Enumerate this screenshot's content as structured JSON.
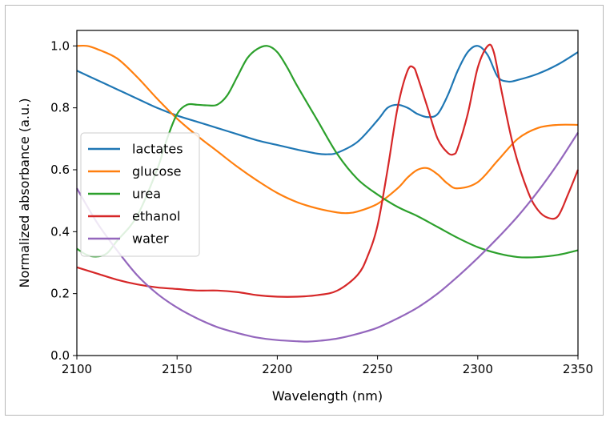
{
  "chart_data": {
    "type": "line",
    "title": "",
    "xlabel": "Wavelength (nm)",
    "ylabel": "Normalized absorbance (a.u.)",
    "xlim": [
      2100,
      2350
    ],
    "ylim": [
      0.0,
      1.05
    ],
    "xticks": [
      "2100",
      "2150",
      "2200",
      "2250",
      "2300",
      "2350"
    ],
    "yticks": [
      "0.0",
      "0.2",
      "0.4",
      "0.6",
      "0.8",
      "1.0"
    ],
    "grid": false,
    "legend_position": "center-left",
    "series": [
      {
        "name": "lactates",
        "color": "#1f77b4",
        "x": [
          2100,
          2110,
          2120,
          2130,
          2140,
          2150,
          2160,
          2170,
          2180,
          2190,
          2200,
          2210,
          2220,
          2225,
          2230,
          2240,
          2250,
          2255,
          2260,
          2265,
          2270,
          2275,
          2280,
          2285,
          2290,
          2295,
          2300,
          2305,
          2310,
          2315,
          2320,
          2330,
          2340,
          2350
        ],
        "y": [
          0.92,
          0.89,
          0.86,
          0.83,
          0.8,
          0.775,
          0.755,
          0.735,
          0.715,
          0.695,
          0.68,
          0.665,
          0.652,
          0.65,
          0.655,
          0.69,
          0.76,
          0.8,
          0.81,
          0.8,
          0.78,
          0.77,
          0.78,
          0.84,
          0.92,
          0.98,
          1.0,
          0.97,
          0.9,
          0.885,
          0.89,
          0.91,
          0.94,
          0.98
        ]
      },
      {
        "name": "glucose",
        "color": "#ff7f0e",
        "x": [
          2100,
          2105,
          2110,
          2120,
          2130,
          2140,
          2150,
          2160,
          2170,
          2180,
          2190,
          2200,
          2210,
          2220,
          2230,
          2235,
          2240,
          2250,
          2260,
          2265,
          2270,
          2275,
          2280,
          2285,
          2290,
          2300,
          2310,
          2320,
          2330,
          2340,
          2350
        ],
        "y": [
          1.0,
          1.0,
          0.99,
          0.96,
          0.9,
          0.83,
          0.765,
          0.71,
          0.66,
          0.61,
          0.565,
          0.525,
          0.495,
          0.475,
          0.462,
          0.46,
          0.465,
          0.49,
          0.54,
          0.575,
          0.6,
          0.605,
          0.585,
          0.555,
          0.54,
          0.56,
          0.63,
          0.7,
          0.735,
          0.745,
          0.745
        ]
      },
      {
        "name": "urea",
        "color": "#2ca02c",
        "x": [
          2100,
          2105,
          2110,
          2115,
          2120,
          2130,
          2140,
          2145,
          2150,
          2155,
          2160,
          2165,
          2170,
          2175,
          2180,
          2185,
          2190,
          2195,
          2200,
          2205,
          2210,
          2220,
          2230,
          2240,
          2250,
          2260,
          2270,
          2280,
          2290,
          2300,
          2310,
          2320,
          2330,
          2340,
          2350
        ],
        "y": [
          0.345,
          0.325,
          0.32,
          0.33,
          0.37,
          0.45,
          0.6,
          0.7,
          0.78,
          0.81,
          0.81,
          0.808,
          0.81,
          0.84,
          0.9,
          0.96,
          0.99,
          1.0,
          0.98,
          0.93,
          0.87,
          0.76,
          0.65,
          0.57,
          0.52,
          0.48,
          0.45,
          0.415,
          0.38,
          0.35,
          0.33,
          0.318,
          0.318,
          0.325,
          0.34
        ]
      },
      {
        "name": "ethanol",
        "color": "#d62728",
        "x": [
          2100,
          2110,
          2120,
          2130,
          2140,
          2150,
          2160,
          2170,
          2180,
          2190,
          2200,
          2210,
          2220,
          2230,
          2240,
          2245,
          2250,
          2255,
          2260,
          2265,
          2268,
          2270,
          2275,
          2280,
          2285,
          2288,
          2290,
          2295,
          2300,
          2305,
          2308,
          2312,
          2318,
          2325,
          2330,
          2335,
          2340,
          2345,
          2350
        ],
        "y": [
          0.285,
          0.265,
          0.245,
          0.23,
          0.22,
          0.215,
          0.21,
          0.21,
          0.205,
          0.195,
          0.19,
          0.19,
          0.195,
          0.21,
          0.26,
          0.32,
          0.42,
          0.6,
          0.8,
          0.92,
          0.93,
          0.9,
          0.8,
          0.7,
          0.655,
          0.65,
          0.67,
          0.78,
          0.93,
          1.0,
          0.98,
          0.85,
          0.67,
          0.53,
          0.47,
          0.445,
          0.45,
          0.52,
          0.6
        ]
      },
      {
        "name": "water",
        "color": "#9467bd",
        "x": [
          2100,
          2110,
          2120,
          2130,
          2140,
          2150,
          2160,
          2170,
          2180,
          2190,
          2200,
          2210,
          2215,
          2220,
          2230,
          2240,
          2250,
          2260,
          2270,
          2280,
          2290,
          2300,
          2310,
          2320,
          2330,
          2340,
          2350
        ],
        "y": [
          0.54,
          0.43,
          0.34,
          0.26,
          0.2,
          0.155,
          0.12,
          0.092,
          0.073,
          0.058,
          0.05,
          0.046,
          0.045,
          0.047,
          0.055,
          0.07,
          0.09,
          0.12,
          0.155,
          0.2,
          0.255,
          0.315,
          0.38,
          0.45,
          0.53,
          0.62,
          0.72
        ]
      }
    ]
  }
}
